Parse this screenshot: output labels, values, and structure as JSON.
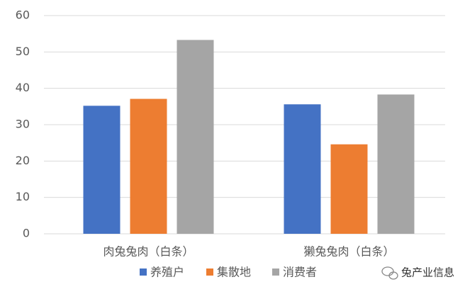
{
  "chart_data": {
    "type": "bar",
    "categories": [
      "肉兔兔肉（白条）",
      "獭兔兔肉（白条）"
    ],
    "series": [
      {
        "name": "养殖户",
        "color": "#4472c4",
        "values": [
          35.2,
          35.6
        ]
      },
      {
        "name": "集散地",
        "color": "#ed7d31",
        "values": [
          37.1,
          24.6
        ]
      },
      {
        "name": "消费者",
        "color": "#a5a5a5",
        "values": [
          53.3,
          38.3
        ]
      }
    ],
    "ylim": [
      0,
      60
    ],
    "yticks": [
      0,
      10,
      20,
      30,
      40,
      50,
      60
    ],
    "grid": true,
    "legend": "bottom",
    "watermark": "兔产业信息"
  }
}
